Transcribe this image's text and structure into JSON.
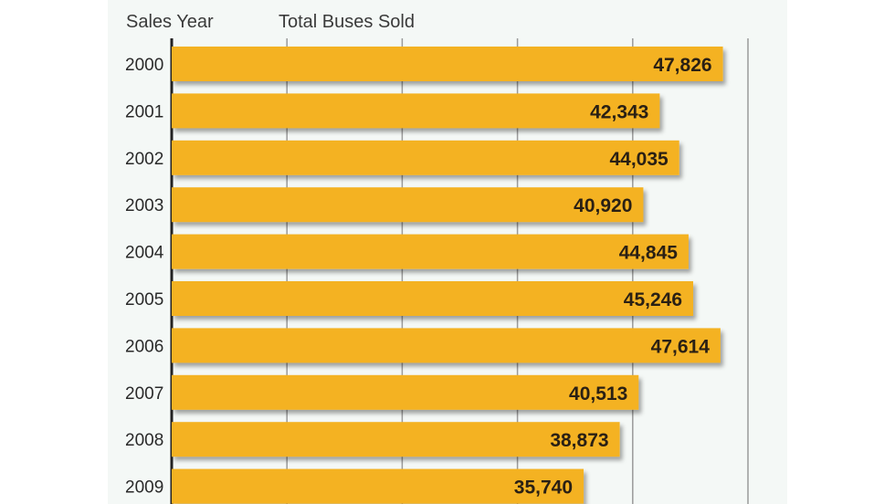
{
  "chart_data": {
    "type": "bar",
    "orientation": "horizontal",
    "category_header": "Sales Year",
    "value_header": "Total Buses Sold",
    "categories": [
      "2000",
      "2001",
      "2002",
      "2003",
      "2004",
      "2005",
      "2006",
      "2007",
      "2008",
      "2009"
    ],
    "values": [
      47826,
      42343,
      44035,
      40920,
      44845,
      45246,
      47614,
      40513,
      38873,
      35740
    ],
    "value_labels": [
      "47,826",
      "42,343",
      "44,035",
      "40,920",
      "44,845",
      "45,246",
      "47,614",
      "40,513",
      "38,873",
      "35,740"
    ],
    "xlim": [
      0,
      50000
    ],
    "grid_step": 10000,
    "grid": true,
    "bar_color": "#f4b223"
  }
}
